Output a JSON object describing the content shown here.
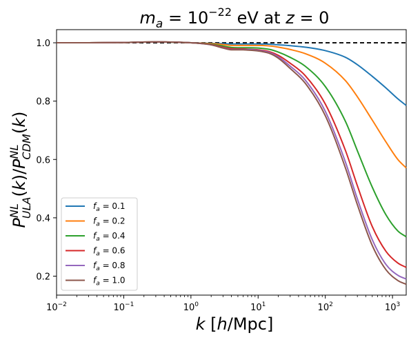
{
  "chart_data": {
    "type": "line",
    "title_parts": {
      "m": "m",
      "sub_a": "a",
      "eq_mid": " = 10",
      "sup": "−22",
      "units": " eV at ",
      "z": "z",
      "eq_end": " = 0"
    },
    "xlabel_parts": {
      "k": "k",
      "open": " [",
      "h": "h",
      "rest": "/Mpc]"
    },
    "ylabel_parts": {
      "p1": "P",
      "sup1": "NL",
      "sub1": "ULA",
      "mid1": "(",
      "k1": "k",
      "close1": ")/",
      "p2": "P",
      "sup2": "NL",
      "sub2": "CDM",
      "mid2": "(",
      "k2": "k",
      "close2": ")"
    },
    "x_scale": "log",
    "xlim": [
      0.01,
      1600
    ],
    "ylim": [
      0.135,
      1.045
    ],
    "x_ticks": [
      {
        "base": "10",
        "exp": "−2",
        "value": 0.01
      },
      {
        "base": "10",
        "exp": "−1",
        "value": 0.1
      },
      {
        "base": "10",
        "exp": "0",
        "value": 1
      },
      {
        "base": "10",
        "exp": "1",
        "value": 10
      },
      {
        "base": "10",
        "exp": "2",
        "value": 100
      },
      {
        "base": "10",
        "exp": "3",
        "value": 1000
      }
    ],
    "y_ticks": [
      {
        "label": "0.2",
        "value": 0.2
      },
      {
        "label": "0.4",
        "value": 0.4
      },
      {
        "label": "0.6",
        "value": 0.6
      },
      {
        "label": "0.8",
        "value": 0.8
      },
      {
        "label": "1.0",
        "value": 1.0
      }
    ],
    "reference_line": {
      "y": 1.0,
      "style": "dashed",
      "color": "#000000"
    },
    "legend_position": "lower-left",
    "k_samples": [
      0.01,
      0.03,
      0.1,
      0.3,
      1.0,
      2.0,
      3.0,
      4.0,
      5.0,
      6.0,
      7.0,
      10.0,
      15.0,
      20.0,
      30.0,
      50.0,
      100.0,
      200.0,
      300.0,
      500.0,
      800.0,
      1200.0,
      1600.0
    ],
    "series": [
      {
        "name": "f_a = 0.1",
        "sym": "f",
        "sub": "a",
        "val": " = 0.1",
        "color": "#1f77b4",
        "values": [
          1.0,
          1.0,
          1.001,
          1.003,
          1.0,
          0.998,
          0.997,
          0.996,
          0.996,
          0.996,
          0.996,
          0.996,
          0.995,
          0.993,
          0.99,
          0.985,
          0.973,
          0.95,
          0.925,
          0.885,
          0.845,
          0.808,
          0.785
        ]
      },
      {
        "name": "f_a = 0.2",
        "sym": "f",
        "sub": "a",
        "val": " = 0.2",
        "color": "#ff7f0e",
        "values": [
          1.0,
          1.0,
          1.001,
          1.003,
          1.0,
          0.997,
          0.994,
          0.991,
          0.991,
          0.991,
          0.991,
          0.991,
          0.989,
          0.985,
          0.977,
          0.963,
          0.93,
          0.87,
          0.815,
          0.735,
          0.66,
          0.6,
          0.571
        ]
      },
      {
        "name": "f_a = 0.4",
        "sym": "f",
        "sub": "a",
        "val": " = 0.4",
        "color": "#2ca02c",
        "values": [
          1.0,
          1.0,
          1.001,
          1.003,
          1.0,
          0.995,
          0.989,
          0.984,
          0.983,
          0.983,
          0.983,
          0.982,
          0.977,
          0.968,
          0.95,
          0.92,
          0.85,
          0.73,
          0.63,
          0.505,
          0.41,
          0.355,
          0.335
        ]
      },
      {
        "name": "f_a = 0.6",
        "sym": "f",
        "sub": "a",
        "val": " = 0.6",
        "color": "#d62728",
        "values": [
          1.0,
          1.0,
          1.001,
          1.003,
          1.0,
          0.994,
          0.985,
          0.98,
          0.979,
          0.979,
          0.978,
          0.976,
          0.969,
          0.957,
          0.93,
          0.888,
          0.79,
          0.63,
          0.51,
          0.37,
          0.285,
          0.245,
          0.23
        ]
      },
      {
        "name": "f_a = 0.8",
        "sym": "f",
        "sub": "a",
        "val": " = 0.8",
        "color": "#9467bd",
        "values": [
          1.0,
          1.0,
          1.001,
          1.003,
          1.0,
          0.993,
          0.983,
          0.977,
          0.977,
          0.977,
          0.977,
          0.974,
          0.966,
          0.952,
          0.92,
          0.873,
          0.765,
          0.59,
          0.465,
          0.325,
          0.24,
          0.203,
          0.19
        ]
      },
      {
        "name": "f_a = 1.0",
        "sym": "f",
        "sub": "a",
        "val": " = 1.0",
        "color": "#8c564b",
        "values": [
          1.0,
          1.0,
          1.001,
          1.003,
          1.0,
          0.993,
          0.982,
          0.976,
          0.976,
          0.976,
          0.975,
          0.972,
          0.963,
          0.947,
          0.912,
          0.862,
          0.75,
          0.57,
          0.445,
          0.305,
          0.222,
          0.185,
          0.172
        ]
      }
    ]
  }
}
